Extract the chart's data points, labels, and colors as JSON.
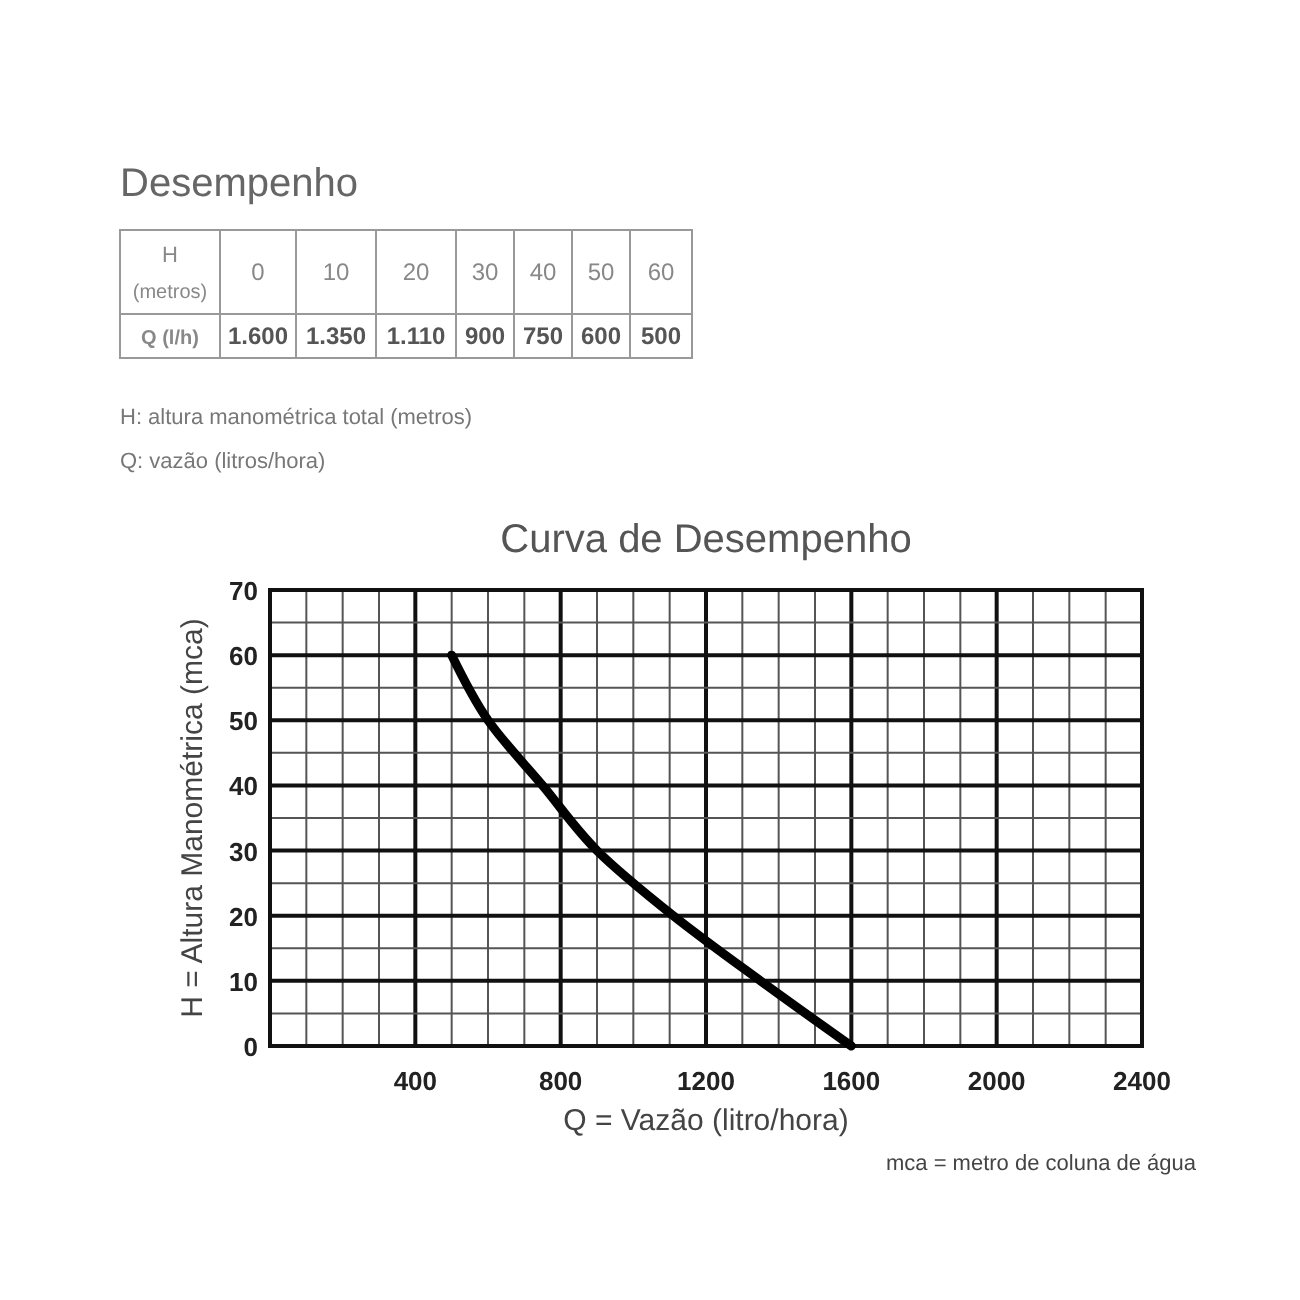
{
  "chart_data": [
    {
      "type": "heatmap",
      "title": "Desempenho",
      "xlabel": "H (metros)",
      "categories": [
        "0",
        "10",
        "20",
        "30",
        "40",
        "50",
        "60"
      ],
      "y_categories": [
        "Q (l/h)"
      ],
      "cells": [
        [
          1600,
          1350,
          1110,
          900,
          750,
          600,
          500
        ]
      ],
      "cell_labels": [
        [
          "1.600",
          "1.350",
          "1.110",
          "900",
          "750",
          "600",
          "500"
        ]
      ],
      "annotations": [
        "H: altura manométrica total (metros)",
        "Q: vazão (litros/hora)"
      ]
    },
    {
      "type": "line",
      "title": "Curva de Desempenho",
      "xlabel": "Q = Vazão (litro/hora)",
      "ylabel": "H = Altura Manométrica (mca)",
      "x": [
        1600,
        1350,
        1110,
        900,
        750,
        600,
        500
      ],
      "series": [
        {
          "color": "#000000",
          "values": [
            0,
            10,
            20,
            30,
            40,
            50,
            60
          ]
        }
      ],
      "xlim": [
        0,
        2400
      ],
      "ylim": [
        0,
        70
      ],
      "xticks": [
        {
          "value": 0,
          "label": null
        },
        {
          "value": 100,
          "label": null
        },
        {
          "value": 200,
          "label": null
        },
        {
          "value": 300,
          "label": null
        },
        400,
        {
          "value": 500,
          "label": null
        },
        {
          "value": 600,
          "label": null
        },
        {
          "value": 700,
          "label": null
        },
        800,
        {
          "value": 900,
          "label": null
        },
        {
          "value": 1000,
          "label": null
        },
        {
          "value": 1100,
          "label": null
        },
        1200,
        {
          "value": 1300,
          "label": null
        },
        {
          "value": 1400,
          "label": null
        },
        {
          "value": 1500,
          "label": null
        },
        1600,
        {
          "value": 1700,
          "label": null
        },
        {
          "value": 1800,
          "label": null
        },
        {
          "value": 1900,
          "label": null
        },
        2000,
        {
          "value": 2100,
          "label": null
        },
        {
          "value": 2200,
          "label": null
        },
        {
          "value": 2300,
          "label": null
        },
        2400
      ],
      "yticks": [
        0,
        {
          "value": 5,
          "label": null
        },
        10,
        {
          "value": 15,
          "label": null
        },
        20,
        {
          "value": 25,
          "label": null
        },
        30,
        {
          "value": 35,
          "label": null
        },
        40,
        {
          "value": 45,
          "label": null
        },
        50,
        {
          "value": 55,
          "label": null
        },
        60,
        {
          "value": 65,
          "label": null
        },
        70
      ],
      "grid": true,
      "line_style": "solid",
      "marker": "none",
      "annotations": [
        "mca = metro de coluna de água"
      ]
    }
  ]
}
